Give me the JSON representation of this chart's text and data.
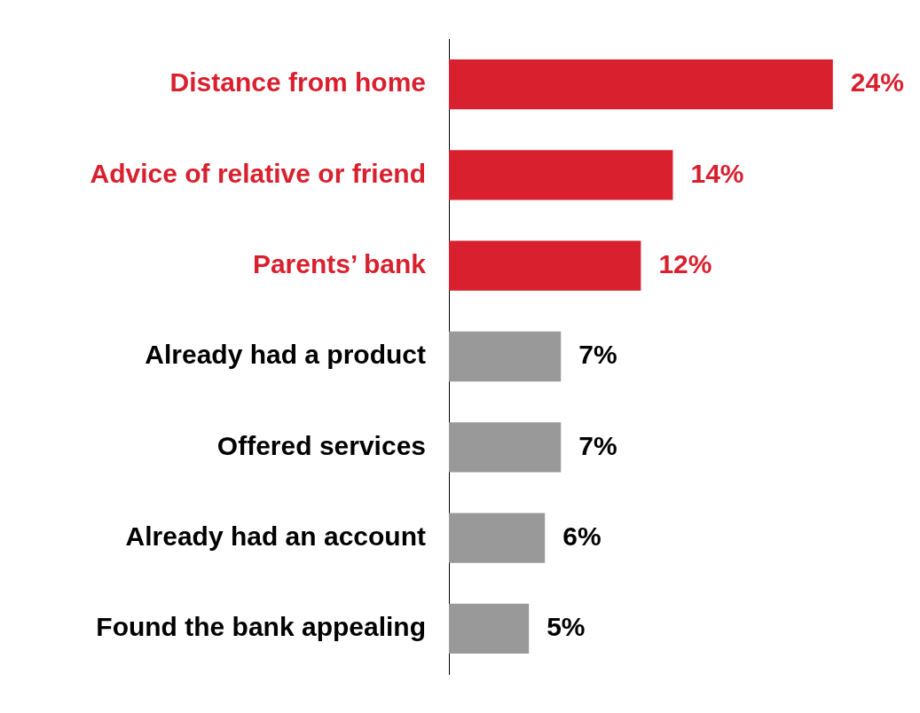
{
  "chart_data": {
    "type": "bar",
    "orientation": "horizontal",
    "categories": [
      "Distance from home",
      "Advice of relative or friend",
      "Parents’ bank",
      "Already had a product",
      "Offered services",
      "Already had an account",
      "Found the bank appealing"
    ],
    "values": [
      24,
      14,
      12,
      7,
      7,
      6,
      5
    ],
    "colors": [
      "#d9202f",
      "#d9202f",
      "#d9202f",
      "#999999",
      "#999999",
      "#999999",
      "#999999"
    ],
    "value_labels": [
      "24%",
      "14%",
      "12%",
      "7%",
      "7%",
      "6%",
      "5%"
    ]
  }
}
